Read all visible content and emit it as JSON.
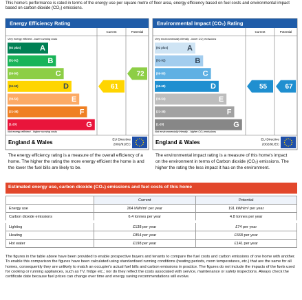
{
  "intro": "This home's performance is rated in terms of the energy use per square metre of floor area, energy efficiency based on fuel costs and environmental impact based on carbon dioxide (CO₂) emissions.",
  "energy_efficiency": {
    "title": "Energy Efficiency Rating",
    "column_current": "Current",
    "column_potential": "Potential",
    "top_note": "Very energy efficient - lower running costs",
    "bands": [
      {
        "range": "(92 plus)",
        "letter": "A",
        "color": "#008054"
      },
      {
        "range": "(81-91)",
        "letter": "B",
        "color": "#19b459"
      },
      {
        "range": "(69-80)",
        "letter": "C",
        "color": "#8dce46"
      },
      {
        "range": "(55-68)",
        "letter": "D",
        "color": "#ffd500"
      },
      {
        "range": "(39-54)",
        "letter": "E",
        "color": "#fcaa65"
      },
      {
        "range": "(21-38)",
        "letter": "F",
        "color": "#ef8023"
      },
      {
        "range": "(1-20)",
        "letter": "G",
        "color": "#e9153b"
      }
    ],
    "bottom_note": "Not energy efficient - higher running costs",
    "current": 61,
    "potential": 72,
    "region": "England & Wales",
    "directive": [
      "EU Directive",
      "2002/91/EC"
    ],
    "caption": "The energy efficiency rating is a measure of the overall efficiency of a home. The higher the rating the more energy efficient the home is and the lower the fuel bills are likely to be."
  },
  "environmental_impact": {
    "title": "Environmental Impact (CO₂) Rating",
    "column_current": "Current",
    "column_potential": "Potential",
    "top_note": "Very environmentally friendly - lower CO₂ emissions",
    "bands": [
      {
        "range": "(92 plus)",
        "letter": "A",
        "color": "#cfe4f4"
      },
      {
        "range": "(81-91)",
        "letter": "B",
        "color": "#a3cdee"
      },
      {
        "range": "(69-80)",
        "letter": "C",
        "color": "#5fb0e3"
      },
      {
        "range": "(55-68)",
        "letter": "D",
        "color": "#1f8fd0"
      },
      {
        "range": "(39-54)",
        "letter": "E",
        "color": "#bdbdbd"
      },
      {
        "range": "(21-38)",
        "letter": "F",
        "color": "#a2a2a2"
      },
      {
        "range": "(1-20)",
        "letter": "G",
        "color": "#878787"
      }
    ],
    "bottom_note": "Not environmentally friendly - higher CO₂ emissions",
    "current": 55,
    "potential": 67,
    "region": "England & Wales",
    "directive": [
      "EU Directive",
      "2002/91/EC"
    ],
    "caption": "The environmental impact rating is a measure of this home's impact on the environment in terms of Carbon dioxide (CO₂) emissions. The higher the rating the less impact it has on the environment."
  },
  "table": {
    "title": "Estimated energy use, carbon dioxide (CO₂) emissions and fuel costs of this home",
    "header": [
      "Current",
      "Potential"
    ],
    "rows": [
      [
        "Energy use",
        "264 kWh/m² per year",
        "191 kWh/m² per year"
      ],
      [
        "Carbon dioxide emissions",
        "6.4 tonnes per year",
        "4.8 tonnes per year"
      ],
      [
        "Lighting",
        "£138 per year",
        "£74 per year"
      ],
      [
        "Heating",
        "£854 per year",
        "£668 per year"
      ],
      [
        "Hot water",
        "£198 per year",
        "£141 per year"
      ]
    ]
  },
  "footer": "The figures in the table above have been provided to enable prospective buyers and tenants to compare the fuel costs and carbon emissions of one home with another. To enable this comparison the figures have been calculated using standardised running conditions (heating periods, room temperatures, etc.) that are the same for all homes, consequently they are unlikely to match an occupier's actual fuel bills and carbon emissions in practice. The figures do not include the impacts of the fuels used for cooking or running appliances, such as TV, fridge etc.; nor do they reflect the costs associated with service, maintenance or safety inspections. Always check the certificate date because fuel prices can change over time and energy saving recommendations will evolve."
}
